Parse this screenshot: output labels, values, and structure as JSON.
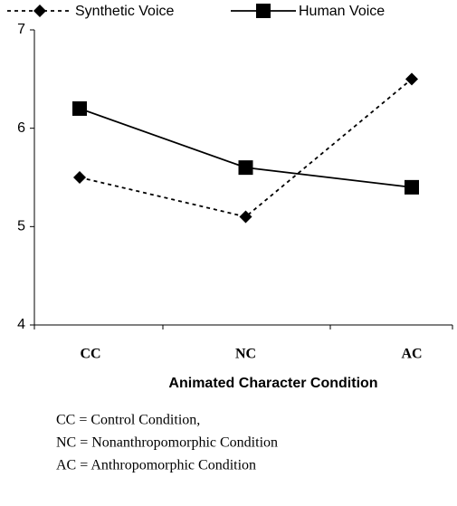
{
  "chart_data": {
    "type": "line",
    "categories": [
      "CC",
      "NC",
      "AC"
    ],
    "series": [
      {
        "name": "Synthetic Voice",
        "color": "#000000",
        "dashed": true,
        "marker": "diamond",
        "values": [
          5.5,
          5.1,
          6.5
        ]
      },
      {
        "name": "Human Voice",
        "color": "#000000",
        "dashed": false,
        "marker": "square",
        "values": [
          6.2,
          5.6,
          5.4
        ]
      }
    ],
    "xlabel": "Animated Character Condition",
    "ylim": [
      4,
      7
    ],
    "yticks": [
      4,
      5,
      6,
      7
    ],
    "notes": [
      "CC = Control Condition,",
      "NC = Nonanthropomorphic Condition",
      "AC = Anthropomorphic Condition"
    ]
  }
}
